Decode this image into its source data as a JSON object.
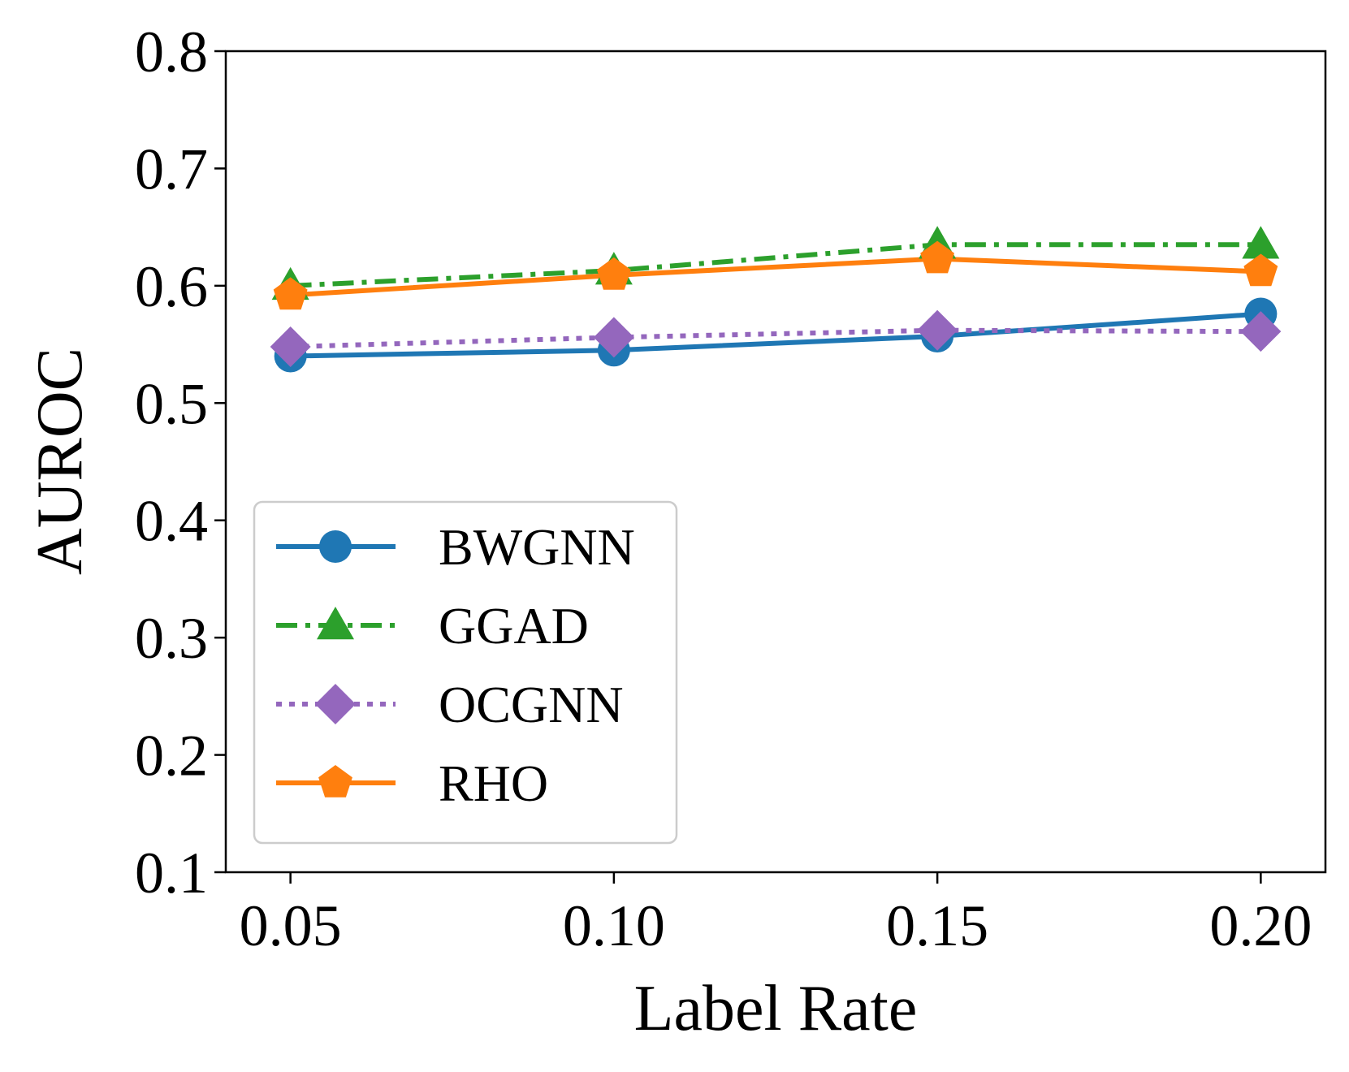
{
  "chart_data": {
    "type": "line",
    "title": "",
    "xlabel": "Label Rate",
    "ylabel": "AUROC",
    "categories": [
      "0.05",
      "0.10",
      "0.15",
      "0.20"
    ],
    "x": [
      0.05,
      0.1,
      0.15,
      0.2
    ],
    "xlim": [
      0.04,
      0.21
    ],
    "ylim": [
      0.1,
      0.8
    ],
    "yticks": [
      "0.1",
      "0.2",
      "0.3",
      "0.4",
      "0.5",
      "0.6",
      "0.7",
      "0.8"
    ],
    "grid": false,
    "legend_position": "lower-left",
    "series": [
      {
        "name": "BWGNN",
        "values": [
          0.54,
          0.545,
          0.557,
          0.576
        ],
        "color": "#1f77b4",
        "marker": "circle",
        "linestyle": "solid"
      },
      {
        "name": "GGAD",
        "values": [
          0.6,
          0.613,
          0.635,
          0.635
        ],
        "color": "#2ca02c",
        "marker": "triangle",
        "linestyle": "dashdot"
      },
      {
        "name": "OCGNN",
        "values": [
          0.548,
          0.556,
          0.562,
          0.561
        ],
        "color": "#9467bd",
        "marker": "diamond",
        "linestyle": "dotted"
      },
      {
        "name": "RHO",
        "values": [
          0.592,
          0.609,
          0.623,
          0.612
        ],
        "color": "#ff7f0e",
        "marker": "pentagon",
        "linestyle": "solid"
      }
    ]
  }
}
